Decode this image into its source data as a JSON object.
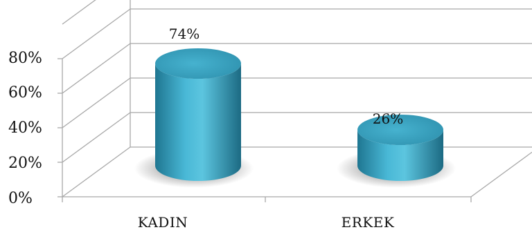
{
  "chart_data": {
    "type": "bar",
    "style": "3d-cylinder",
    "categories": [
      "KADIN",
      "ERKEK"
    ],
    "values": [
      74,
      26
    ],
    "value_labels": [
      "74%",
      "26%"
    ],
    "title": "",
    "xlabel": "",
    "ylabel": "",
    "ylim": [
      0,
      80
    ],
    "y_ticks": [
      "0%",
      "20%",
      "40%",
      "60%",
      "80%"
    ],
    "grid": true,
    "legend": "none",
    "colors": {
      "bar_main": "#3aa6c4",
      "bar_highlight": "#5cc4df",
      "bar_dark": "#1d6f88",
      "gridline": "#a8a8a8",
      "text": "#111111"
    }
  }
}
